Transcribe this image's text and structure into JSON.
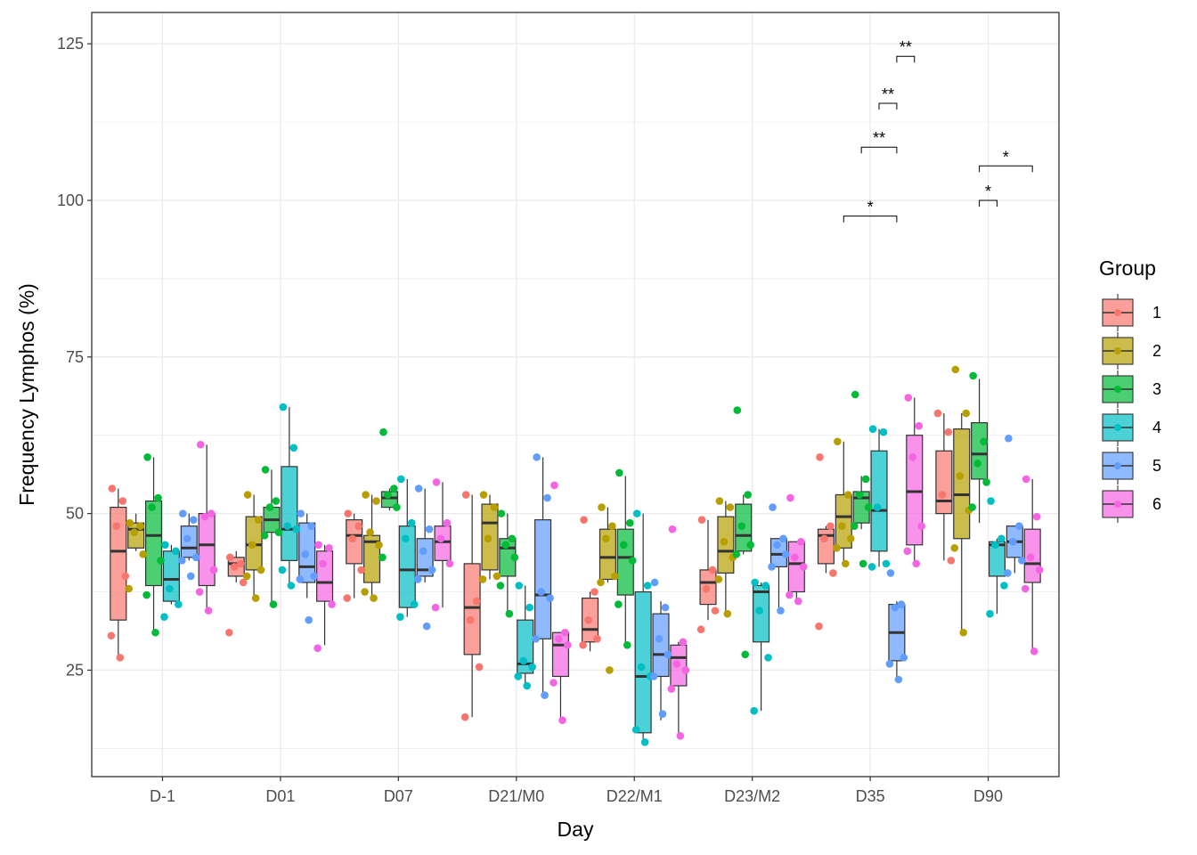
{
  "chart_data": {
    "type": "box",
    "xlabel": "Day",
    "ylabel": "Frequency  Lymphos (%)",
    "ylim": [
      8,
      130
    ],
    "yticks": [
      25,
      50,
      75,
      100,
      125
    ],
    "grid": true,
    "legend": {
      "title": "Group",
      "placement": "right"
    },
    "categories": [
      "D-1",
      "D01",
      "D07",
      "D21/M0",
      "D22/M1",
      "D23/M2",
      "D35",
      "D90"
    ],
    "groups": [
      "1",
      "2",
      "3",
      "4",
      "5",
      "6"
    ],
    "group_colors": [
      "#F8766D",
      "#B79F00",
      "#00BA38",
      "#00BFC4",
      "#619CFF",
      "#F564E3"
    ],
    "series": [
      {
        "name": "1",
        "boxes": [
          {
            "whislo": 27,
            "q1": 33,
            "med": 44,
            "q3": 51,
            "whishi": 54,
            "points": [
              54,
              52,
              48,
              40,
              30.5,
              27
            ]
          },
          {
            "whislo": 39,
            "q1": 40,
            "med": 42,
            "q3": 43,
            "whishi": 44,
            "points": [
              43,
              42,
              41.5,
              39,
              31
            ]
          },
          {
            "whislo": 36.5,
            "q1": 42,
            "med": 46.5,
            "q3": 49,
            "whishi": 50,
            "points": [
              50,
              48,
              46,
              41,
              36.5
            ]
          },
          {
            "whislo": 17.5,
            "q1": 27.5,
            "med": 35,
            "q3": 42,
            "whishi": 53,
            "points": [
              53,
              36,
              33,
              25.5,
              17.5
            ]
          },
          {
            "whislo": 28,
            "q1": 29.5,
            "med": 31.5,
            "q3": 36.5,
            "whishi": 37.5,
            "points": [
              49,
              37.5,
              33,
              30,
              29
            ]
          },
          {
            "whislo": 33,
            "q1": 35.5,
            "med": 39,
            "q3": 41,
            "whishi": 49,
            "points": [
              49,
              41,
              38,
              34.5,
              31.5
            ]
          },
          {
            "whislo": 40.5,
            "q1": 42,
            "med": 46.5,
            "q3": 47.5,
            "whishi": 48,
            "points": [
              59,
              48,
              46,
              40.5,
              32
            ]
          },
          {
            "whislo": 42.5,
            "q1": 50,
            "med": 52,
            "q3": 60,
            "whishi": 66,
            "points": [
              66,
              63,
              53,
              42.5
            ]
          }
        ]
      },
      {
        "name": "2",
        "boxes": [
          {
            "whislo": 44,
            "q1": 44.5,
            "med": 47.5,
            "q3": 48.5,
            "whishi": 50,
            "points": [
              48.5,
              48,
              47,
              43.5,
              38
            ]
          },
          {
            "whislo": 36.5,
            "q1": 41,
            "med": 45,
            "q3": 49.5,
            "whishi": 53,
            "points": [
              53,
              49,
              45,
              41,
              40,
              36.5
            ]
          },
          {
            "whislo": 36,
            "q1": 39,
            "med": 45.5,
            "q3": 46.5,
            "whishi": 53,
            "points": [
              53,
              52,
              47,
              45,
              37.5,
              36.5
            ]
          },
          {
            "whislo": 39.5,
            "q1": 41,
            "med": 48.5,
            "q3": 51.5,
            "whishi": 53,
            "points": [
              53,
              51,
              46,
              40,
              39.5
            ]
          },
          {
            "whislo": 39,
            "q1": 39.5,
            "med": 43,
            "q3": 47.5,
            "whishi": 51,
            "points": [
              51,
              48,
              46,
              40,
              39,
              25
            ]
          },
          {
            "whislo": 34,
            "q1": 40.5,
            "med": 44,
            "q3": 49.5,
            "whishi": 52,
            "points": [
              52,
              51,
              45.5,
              43,
              39.5,
              34
            ]
          },
          {
            "whislo": 42,
            "q1": 44.5,
            "med": 49.5,
            "q3": 53,
            "whishi": 61.5,
            "points": [
              61.5,
              53,
              48,
              46,
              44.5,
              42
            ]
          },
          {
            "whislo": 31,
            "q1": 46,
            "med": 53,
            "q3": 63.5,
            "whishi": 66,
            "points": [
              73,
              66,
              56,
              50.5,
              44.5,
              31
            ]
          }
        ]
      },
      {
        "name": "3",
        "boxes": [
          {
            "whislo": 31,
            "q1": 38.5,
            "med": 46.5,
            "q3": 52,
            "whishi": 59,
            "points": [
              59,
              52.5,
              51,
              42.5,
              37,
              31
            ]
          },
          {
            "whislo": 35.5,
            "q1": 47,
            "med": 49,
            "q3": 51,
            "whishi": 57,
            "points": [
              57,
              52,
              51,
              47,
              46.5,
              35.5
            ]
          },
          {
            "whislo": 50.5,
            "q1": 51,
            "med": 52.5,
            "q3": 53.5,
            "whishi": 54,
            "points": [
              63,
              54,
              53,
              51,
              43
            ]
          },
          {
            "whislo": 34,
            "q1": 40,
            "med": 44.5,
            "q3": 46,
            "whishi": 50,
            "points": [
              50,
              46,
              45,
              43,
              38.5,
              34
            ]
          },
          {
            "whislo": 29,
            "q1": 37,
            "med": 43,
            "q3": 47.5,
            "whishi": 56,
            "points": [
              56.5,
              48.5,
              45,
              42.5,
              35.5,
              29
            ]
          },
          {
            "whislo": 43.5,
            "q1": 44,
            "med": 46.5,
            "q3": 51.5,
            "whishi": 53,
            "points": [
              66.5,
              53,
              48,
              45,
              43.5,
              27.5
            ]
          },
          {
            "whislo": 47.5,
            "q1": 48.5,
            "med": 52.5,
            "q3": 53.5,
            "whishi": 56,
            "points": [
              69,
              55.5,
              53,
              51,
              48,
              42
            ]
          },
          {
            "whislo": 48.5,
            "q1": 55.5,
            "med": 59.5,
            "q3": 64.5,
            "whishi": 71.5,
            "points": [
              72,
              61.5,
              58,
              55,
              51
            ]
          }
        ]
      },
      {
        "name": "4",
        "boxes": [
          {
            "whislo": 35.5,
            "q1": 36,
            "med": 39.5,
            "q3": 44,
            "whishi": 45,
            "points": [
              45,
              44,
              38,
              35.5,
              33.5
            ]
          },
          {
            "whislo": 38.5,
            "q1": 42.5,
            "med": 47.5,
            "q3": 57.5,
            "whishi": 67,
            "points": [
              67,
              60.5,
              48,
              47.5,
              41,
              38.5
            ]
          },
          {
            "whislo": 33.5,
            "q1": 35,
            "med": 41,
            "q3": 48,
            "whishi": 55.5,
            "points": [
              55.5,
              48.5,
              46,
              35.5,
              33.5
            ]
          },
          {
            "whislo": 22.5,
            "q1": 24.5,
            "med": 26,
            "q3": 33,
            "whishi": 38.5,
            "points": [
              38.5,
              35,
              26.5,
              25.5,
              24,
              22.5
            ]
          },
          {
            "whislo": 13,
            "q1": 15,
            "med": 24,
            "q3": 37.5,
            "whishi": 50,
            "points": [
              50,
              38.5,
              25.5,
              24,
              15.5,
              13.5
            ]
          },
          {
            "whislo": 18.5,
            "q1": 29.5,
            "med": 37.5,
            "q3": 38.5,
            "whishi": 39,
            "points": [
              39,
              38.5,
              34.5,
              27,
              18.5
            ]
          },
          {
            "whislo": 41.5,
            "q1": 44,
            "med": 50.5,
            "q3": 60,
            "whishi": 63.5,
            "points": [
              63.5,
              63,
              51,
              42,
              41.5
            ]
          },
          {
            "whislo": 34,
            "q1": 40,
            "med": 45,
            "q3": 45.5,
            "whishi": 46,
            "points": [
              52,
              46,
              45,
              38.5,
              34
            ]
          }
        ]
      },
      {
        "name": "5",
        "boxes": [
          {
            "whislo": 42.5,
            "q1": 43,
            "med": 44.5,
            "q3": 48,
            "whishi": 50,
            "points": [
              50,
              49,
              46,
              43,
              42.5,
              40
            ]
          },
          {
            "whislo": 36.5,
            "q1": 39,
            "med": 41.5,
            "q3": 48.5,
            "whishi": 50,
            "points": [
              50,
              48,
              43.5,
              40,
              39.5,
              33
            ]
          },
          {
            "whislo": 39,
            "q1": 40,
            "med": 41,
            "q3": 46,
            "whishi": 54,
            "points": [
              54,
              47.5,
              44,
              41,
              39.5,
              32
            ]
          },
          {
            "whislo": 21,
            "q1": 30,
            "med": 37,
            "q3": 49,
            "whishi": 59,
            "points": [
              59,
              52.5,
              37.5,
              36.5,
              30,
              21
            ]
          },
          {
            "whislo": 17,
            "q1": 24,
            "med": 27.5,
            "q3": 34,
            "whishi": 36,
            "points": [
              39,
              35,
              30,
              27.5,
              24,
              18
            ]
          },
          {
            "whislo": 35,
            "q1": 41.5,
            "med": 43.5,
            "q3": 46,
            "whishi": 46,
            "points": [
              51,
              46,
              45,
              43.5,
              41.5,
              34.5
            ]
          },
          {
            "whislo": 23.5,
            "q1": 26.5,
            "med": 31,
            "q3": 35.5,
            "whishi": 36,
            "points": [
              40.5,
              35.5,
              35,
              27,
              26,
              23.5
            ]
          },
          {
            "whislo": 40.5,
            "q1": 43,
            "med": 45.5,
            "q3": 48,
            "whishi": 48,
            "points": [
              62,
              48,
              45.5,
              42.5,
              40.5
            ]
          }
        ]
      },
      {
        "name": "6",
        "boxes": [
          {
            "whislo": 34.5,
            "q1": 38.5,
            "med": 45,
            "q3": 50,
            "whishi": 61,
            "points": [
              61,
              50,
              49.5,
              41,
              37.5,
              34.5
            ]
          },
          {
            "whislo": 29,
            "q1": 36,
            "med": 39,
            "q3": 44,
            "whishi": 45,
            "points": [
              45,
              44.5,
              42,
              35.5,
              28.5
            ]
          },
          {
            "whislo": 35,
            "q1": 42.5,
            "med": 45.5,
            "q3": 48,
            "whishi": 55,
            "points": [
              55,
              48.5,
              46,
              42,
              35
            ]
          },
          {
            "whislo": 17,
            "q1": 24,
            "med": 29,
            "q3": 31,
            "whishi": 31,
            "points": [
              54.5,
              31,
              30,
              29,
              23,
              17
            ]
          },
          {
            "whislo": 14.5,
            "q1": 22.5,
            "med": 27,
            "q3": 29,
            "whishi": 29.5,
            "points": [
              47.5,
              29.5,
              26,
              25,
              22,
              14.5
            ]
          },
          {
            "whislo": 36,
            "q1": 37.5,
            "med": 42,
            "q3": 45.5,
            "whishi": 45.5,
            "points": [
              52.5,
              45.5,
              43,
              41.5,
              37,
              36
            ]
          },
          {
            "whislo": 42,
            "q1": 45,
            "med": 53.5,
            "q3": 62.5,
            "whishi": 68.5,
            "points": [
              68.5,
              64,
              59,
              48,
              44,
              42
            ]
          },
          {
            "whislo": 28,
            "q1": 39,
            "med": 42,
            "q3": 47.5,
            "whishi": 55.5,
            "points": [
              55.5,
              49.5,
              43,
              41,
              38,
              28
            ]
          }
        ]
      }
    ],
    "significance": [
      {
        "category": "D35",
        "from_group": "2",
        "to_group": "5",
        "y": 97.5,
        "label": "*"
      },
      {
        "category": "D35",
        "from_group": "3",
        "to_group": "5",
        "y": 108.5,
        "label": "**"
      },
      {
        "category": "D35",
        "from_group": "4",
        "to_group": "5",
        "y": 115.5,
        "label": "**"
      },
      {
        "category": "D35",
        "from_group": "5",
        "to_group": "6",
        "y": 123,
        "label": "**"
      },
      {
        "category": "D90",
        "from_group": "3",
        "to_group": "4",
        "y": 100,
        "label": "*"
      },
      {
        "category": "D90",
        "from_group": "3",
        "to_group": "6",
        "y": 105.5,
        "label": "*"
      }
    ]
  }
}
